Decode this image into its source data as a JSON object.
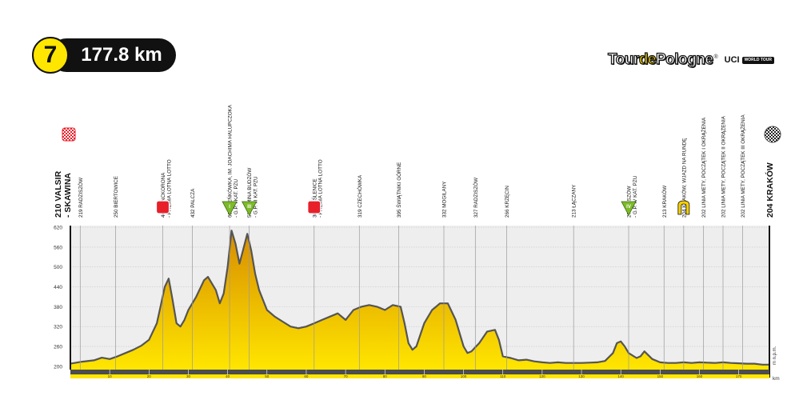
{
  "stage": {
    "number": "7",
    "distance": "177.8 km"
  },
  "logo": {
    "name_part1": "Tour",
    "name_part2": "de",
    "name_part3": "Pologne",
    "registered": "®",
    "uci": "UCI",
    "world_tour": "WORLD TOUR"
  },
  "colors": {
    "fill_top": "#d78c00",
    "fill_bottom": "#ffe600",
    "outline": "#555555",
    "sprint_red": "#e8202a",
    "kom_green": "#7dba2a",
    "finish_line_yellow": "#f5d000"
  },
  "chart_data": {
    "type": "area",
    "title": "",
    "xlabel": "km",
    "ylabel": "m n.p.m.",
    "xlim": [
      0,
      177.8
    ],
    "ylim": [
      190,
      625
    ],
    "y_ticks": [
      200,
      260,
      320,
      380,
      440,
      500,
      560,
      620
    ],
    "x_ticks": [
      10,
      20,
      30,
      40,
      50,
      60,
      70,
      80,
      90,
      100,
      110,
      120,
      130,
      140,
      150,
      160,
      170
    ],
    "grid": true,
    "x": [
      0,
      3,
      6,
      8,
      10,
      12,
      14,
      16,
      18,
      20,
      22,
      23,
      24,
      25,
      26,
      27,
      28,
      29,
      30,
      32,
      34,
      35,
      36,
      37,
      38,
      39,
      40,
      41,
      42,
      43,
      44,
      45,
      46,
      47,
      48,
      49,
      50,
      52,
      54,
      56,
      58,
      60,
      62,
      64,
      66,
      68,
      70,
      72,
      74,
      76,
      78,
      80,
      82,
      84,
      85,
      86,
      87,
      88,
      90,
      92,
      93,
      94,
      96,
      98,
      100,
      101,
      102,
      104,
      106,
      108,
      109,
      110,
      112,
      114,
      116,
      118,
      120,
      122,
      124,
      126,
      128,
      130,
      132,
      134,
      136,
      138,
      139,
      140,
      141,
      142,
      144,
      145,
      146,
      148,
      150,
      152,
      154,
      156,
      158,
      160,
      162,
      164,
      166,
      168,
      170,
      172,
      174,
      176,
      177.8
    ],
    "y": [
      208,
      214,
      218,
      226,
      222,
      230,
      240,
      250,
      262,
      280,
      330,
      385,
      440,
      465,
      400,
      330,
      320,
      340,
      370,
      410,
      460,
      470,
      450,
      430,
      390,
      420,
      500,
      610,
      570,
      510,
      555,
      600,
      550,
      480,
      430,
      400,
      370,
      350,
      335,
      320,
      315,
      320,
      330,
      340,
      350,
      360,
      340,
      370,
      380,
      385,
      380,
      370,
      385,
      380,
      330,
      270,
      250,
      260,
      330,
      370,
      380,
      390,
      390,
      340,
      260,
      240,
      245,
      270,
      305,
      310,
      280,
      230,
      225,
      218,
      220,
      215,
      212,
      210,
      212,
      210,
      210,
      210,
      211,
      212,
      216,
      240,
      270,
      275,
      260,
      240,
      225,
      230,
      245,
      222,
      212,
      210,
      210,
      212,
      210,
      212,
      211,
      210,
      212,
      210,
      209,
      208,
      208,
      205,
      205
    ],
    "labels_left": [
      {
        "km": 0,
        "text": "210 VALSIR - SKAWINA"
      }
    ],
    "waypoints": [
      {
        "km": 2.5,
        "text": "219 RADZISZÓW",
        "marker": ""
      },
      {
        "km": 11.5,
        "text": "250 BIERTOWICE",
        "marker": ""
      },
      {
        "km": 23.5,
        "text": "466 LANCKORONA - PREMIA LOTNA LOTTO",
        "marker": "sprint"
      },
      {
        "km": 31.0,
        "text": "432 PALCZA",
        "marker": ""
      },
      {
        "km": 40.5,
        "text": "603 BIEŃKÓWKA, IM. JOACHIMA HALUPCZOKA - G.P. I KAT. PZU",
        "marker": "kom1"
      },
      {
        "km": 45.5,
        "text": "571 GMINA BUDZÓW - G.P. III KAT. PZU",
        "marker": "kom3"
      },
      {
        "km": 62.0,
        "text": "301 MYŚLENICE - PREMIA LOTNA LOTTO",
        "marker": "sprint"
      },
      {
        "km": 73.5,
        "text": "319 CZECHÓWKA",
        "marker": ""
      },
      {
        "km": 83.5,
        "text": "395 ŚWIĄTNIKI GÓRNE",
        "marker": ""
      },
      {
        "km": 95.0,
        "text": "332 MOGILANY",
        "marker": ""
      },
      {
        "km": 103.0,
        "text": "327 RADZISZÓW",
        "marker": ""
      },
      {
        "km": 111.0,
        "text": "266 KRZĘCIN",
        "marker": ""
      },
      {
        "km": 128.0,
        "text": "213 ŁĄCZANY",
        "marker": ""
      },
      {
        "km": 142.0,
        "text": "274 KASZÓW - G.P. IV KAT. PZU",
        "marker": "kom4"
      },
      {
        "km": 151.0,
        "text": "213 KRAKÓW",
        "marker": ""
      },
      {
        "km": 156.0,
        "text": "204 KRAKÓW, WJAZD NA RUNDĘ",
        "marker": "loop"
      },
      {
        "km": 161.0,
        "text": "202 LINIA METY, POCZĄTEK I OKRĄŻENIA",
        "marker": ""
      },
      {
        "km": 166.0,
        "text": "202 LINIA METY, POCZĄTEK II OKRĄŻENIA",
        "marker": ""
      },
      {
        "km": 171.0,
        "text": "202 LINIA METY, POCZĄTEK III OKRĄŻENIA",
        "marker": ""
      }
    ],
    "labels_right": [
      {
        "km": 177.8,
        "text": "204 KRAKÓW"
      }
    ],
    "kom_labels": {
      "kom1": "I",
      "kom3": "III",
      "kom4": "IV"
    }
  }
}
